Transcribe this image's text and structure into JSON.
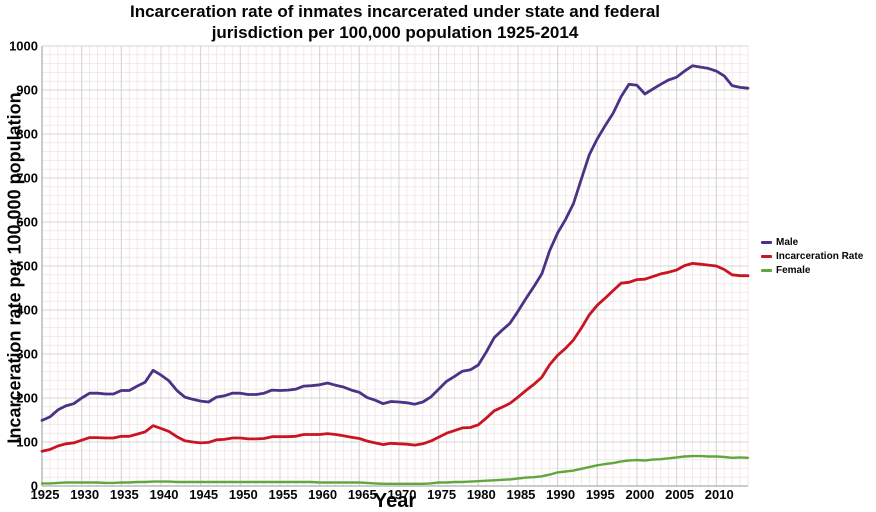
{
  "chart_data": {
    "type": "line",
    "title": "Incarceration rate of inmates incarcerated under state and federal jurisdiction per 100,000 population 1925-2014",
    "title_lines": [
      "Incarceration rate of inmates incarcerated under state and federal",
      "jurisdiction per 100,000 population 1925-2014"
    ],
    "xlabel": "Year",
    "ylabel": "Incarceration rate per 100,000 population",
    "xlim": [
      1925,
      2014
    ],
    "ylim": [
      0,
      1000
    ],
    "x_ticks": [
      1925,
      1930,
      1935,
      1940,
      1945,
      1950,
      1955,
      1960,
      1965,
      1970,
      1975,
      1980,
      1985,
      1990,
      1995,
      2000,
      2005,
      2010
    ],
    "y_ticks": [
      0,
      100,
      200,
      300,
      400,
      500,
      600,
      700,
      800,
      900,
      1000
    ],
    "grid": {
      "minor_x_step": 1,
      "minor_y_step": 20,
      "minor_color": "#f3e7e7",
      "major_color": "#d4d4d4",
      "spine_color": "#9a9a9a"
    },
    "legend_position": "right",
    "x_start": 1925,
    "x_step": 1,
    "series": [
      {
        "name": "Male",
        "color": "#4b3286",
        "stroke_width": 2.8,
        "values": [
          149,
          157,
          173,
          182,
          187,
          200,
          211,
          211,
          209,
          209,
          217,
          217,
          227,
          236,
          263,
          252,
          239,
          217,
          202,
          197,
          193,
          191,
          202,
          205,
          211,
          211,
          208,
          208,
          211,
          218,
          217,
          218,
          220,
          227,
          228,
          230,
          234,
          229,
          225,
          218,
          213,
          201,
          195,
          187,
          192,
          191,
          189,
          186,
          191,
          202,
          220,
          238,
          249,
          261,
          264,
          275,
          304,
          337,
          354,
          370,
          397,
          426,
          453,
          482,
          535,
          575,
          606,
          642,
          698,
          753,
          789,
          819,
          847,
          885,
          913,
          911,
          891,
          902,
          913,
          923,
          929,
          943,
          955,
          952,
          949,
          943,
          932,
          910,
          906,
          904
        ]
      },
      {
        "name": "Incarceration Rate",
        "color": "#cb1422",
        "stroke_width": 2.8,
        "values": [
          79,
          83,
          91,
          96,
          98,
          104,
          110,
          110,
          109,
          109,
          113,
          113,
          118,
          123,
          137,
          131,
          124,
          112,
          103,
          100,
          98,
          99,
          105,
          106,
          109,
          109,
          107,
          107,
          108,
          112,
          112,
          112,
          113,
          117,
          117,
          117,
          119,
          117,
          114,
          111,
          108,
          102,
          98,
          94,
          97,
          96,
          95,
          93,
          96,
          102,
          111,
          120,
          126,
          132,
          133,
          139,
          154,
          171,
          179,
          188,
          202,
          217,
          231,
          247,
          276,
          297,
          313,
          332,
          359,
          389,
          411,
          427,
          444,
          461,
          463,
          469,
          470,
          476,
          482,
          486,
          491,
          501,
          506,
          504,
          502,
          500,
          492,
          480,
          478,
          478
        ]
      },
      {
        "name": "Female",
        "color": "#62a73e",
        "stroke_width": 2.4,
        "values": [
          6,
          6,
          7,
          8,
          8,
          8,
          8,
          8,
          7,
          7,
          8,
          8,
          9,
          9,
          10,
          10,
          10,
          9,
          9,
          9,
          9,
          9,
          9,
          9,
          9,
          9,
          9,
          9,
          9,
          9,
          9,
          9,
          9,
          9,
          9,
          8,
          8,
          8,
          8,
          8,
          8,
          7,
          6,
          5,
          5,
          5,
          5,
          5,
          5,
          6,
          8,
          8,
          9,
          9,
          10,
          11,
          12,
          13,
          14,
          15,
          17,
          19,
          20,
          22,
          26,
          31,
          33,
          35,
          39,
          43,
          47,
          50,
          52,
          56,
          58,
          59,
          58,
          60,
          61,
          63,
          65,
          67,
          68,
          68,
          67,
          67,
          66,
          64,
          65,
          64
        ]
      }
    ]
  }
}
